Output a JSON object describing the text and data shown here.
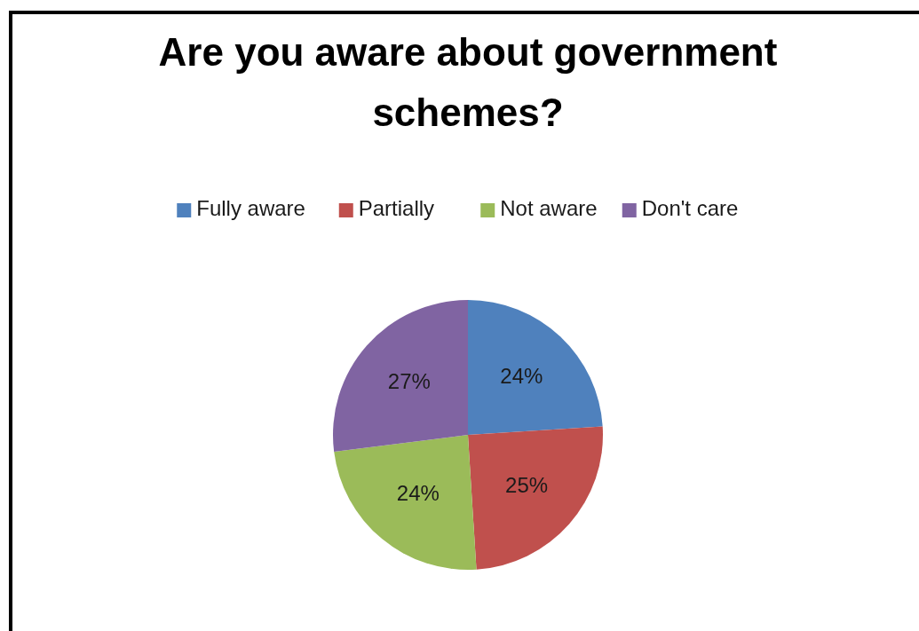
{
  "chart_data": {
    "type": "pie",
    "title": "Are you aware about government schemes?",
    "categories": [
      "Fully aware",
      "Partially",
      "Not aware",
      "Don't care"
    ],
    "values": [
      24,
      25,
      24,
      27
    ],
    "value_labels": [
      "24%",
      "25%",
      "24%",
      "27%"
    ],
    "colors": [
      "#4f81bd",
      "#c0504d",
      "#9bbb59",
      "#8064a2"
    ],
    "legend": "top"
  }
}
